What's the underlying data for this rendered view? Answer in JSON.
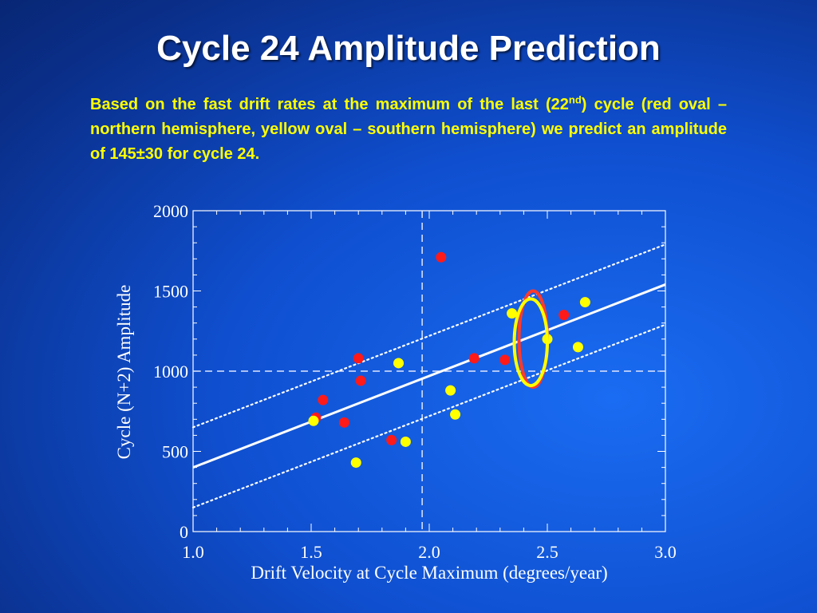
{
  "title": "Cycle 24 Amplitude Prediction",
  "caption": {
    "part1": "Based on the fast drift rates at the maximum of the last (22",
    "sup": "nd",
    "part2": ") cycle (red oval – northern hemisphere, yellow oval – southern hemisphere) we predict an amplitude of 145±30 for cycle 24."
  },
  "colors": {
    "north": "#ff1a1a",
    "south": "#ffff00",
    "north_oval": "#ff3a2a",
    "south_oval": "#ffff00",
    "line": "#ffffff"
  },
  "chart_data": {
    "type": "scatter",
    "xlabel": "Drift Velocity at Cycle Maximum (degrees/year)",
    "ylabel": "Cycle (N+2) Amplitude",
    "xlim": [
      1.0,
      3.0
    ],
    "ylim": [
      0,
      2000
    ],
    "xticks": [
      "1.0",
      "1.5",
      "2.0",
      "2.5",
      "3.0"
    ],
    "yticks": [
      "0",
      "500",
      "1000",
      "1500",
      "2000"
    ],
    "grid": false,
    "series": [
      {
        "color": "#ff1a1a",
        "points": [
          {
            "x": 1.52,
            "y": 710
          },
          {
            "x": 1.55,
            "y": 820
          },
          {
            "x": 1.64,
            "y": 680
          },
          {
            "x": 1.7,
            "y": 1080
          },
          {
            "x": 1.71,
            "y": 940
          },
          {
            "x": 1.84,
            "y": 570
          },
          {
            "x": 2.05,
            "y": 1710
          },
          {
            "x": 2.19,
            "y": 1080
          },
          {
            "x": 2.32,
            "y": 1070
          },
          {
            "x": 2.57,
            "y": 1350
          }
        ]
      },
      {
        "color": "#ffff00",
        "points": [
          {
            "x": 1.51,
            "y": 690
          },
          {
            "x": 1.69,
            "y": 430
          },
          {
            "x": 1.87,
            "y": 1050
          },
          {
            "x": 1.9,
            "y": 560
          },
          {
            "x": 2.09,
            "y": 880
          },
          {
            "x": 2.11,
            "y": 730
          },
          {
            "x": 2.35,
            "y": 1360
          },
          {
            "x": 2.5,
            "y": 1200
          },
          {
            "x": 2.63,
            "y": 1150
          },
          {
            "x": 2.66,
            "y": 1430
          }
        ]
      }
    ],
    "fit_line": {
      "x": [
        1.0,
        3.0
      ],
      "y": [
        400,
        1540
      ]
    },
    "bound_upper": {
      "x": [
        1.0,
        3.0
      ],
      "y": [
        650,
        1790
      ]
    },
    "bound_lower": {
      "x": [
        1.0,
        3.0
      ],
      "y": [
        150,
        1290
      ]
    },
    "ref_lines": {
      "x": 1.97,
      "y": 1000
    },
    "ovals": [
      {
        "hemisphere": "northern",
        "color": "#ff3a2a",
        "cx": 2.44,
        "cy": 1200,
        "rx": 0.06,
        "ry": 300
      },
      {
        "hemisphere": "southern",
        "color": "#ffff00",
        "cx": 2.43,
        "cy": 1180,
        "rx": 0.07,
        "ry": 270
      }
    ]
  }
}
